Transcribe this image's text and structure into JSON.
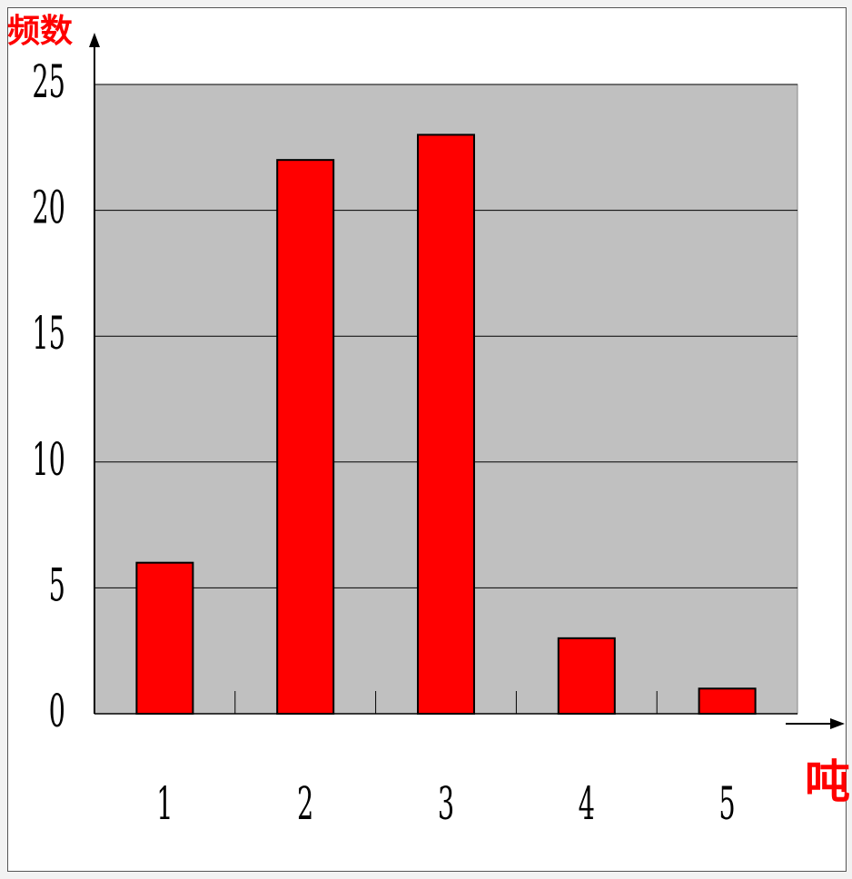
{
  "chart_data": {
    "type": "bar",
    "categories": [
      "1",
      "2",
      "3",
      "4",
      "5"
    ],
    "values": [
      6,
      22,
      23,
      3,
      1
    ],
    "xlabel": "吨",
    "ylabel": "频数",
    "ylim": [
      0,
      25
    ],
    "yticks": [
      0,
      5,
      10,
      15,
      20,
      25
    ],
    "grid": true,
    "legend": "none"
  },
  "colors": {
    "bar": "#ff0000",
    "plot_background": "#c0c0c0",
    "axis_title": "#ff0000",
    "gridline": "#000000"
  }
}
